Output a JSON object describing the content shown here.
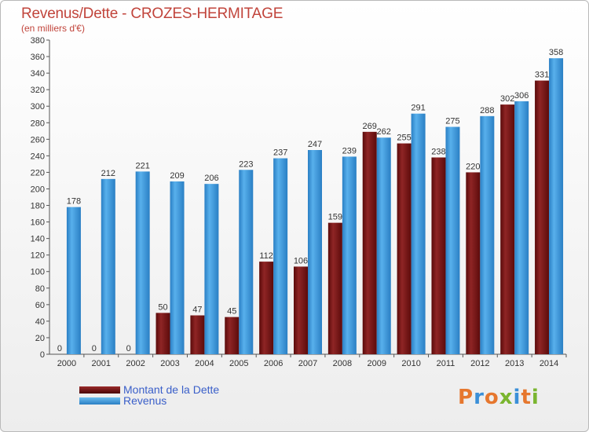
{
  "header": {
    "title": "Revenus/Dette - CROZES-HERMITAGE",
    "subtitle": "(en milliers d'€)"
  },
  "legend": [
    {
      "label": "Montant de la Dette",
      "color": "#7a1212"
    },
    {
      "label": "Revenus",
      "color": "#3d98dd"
    }
  ],
  "logo": {
    "text": "Proxiti"
  },
  "colors": {
    "dette": "#7a1212",
    "revenus": "#3d98dd",
    "title": "#c1443b"
  },
  "chart_data": {
    "type": "bar",
    "categories": [
      "2000",
      "2001",
      "2002",
      "2003",
      "2004",
      "2005",
      "2006",
      "2007",
      "2008",
      "2009",
      "2010",
      "2011",
      "2012",
      "2013",
      "2014"
    ],
    "series": [
      {
        "name": "Montant de la Dette",
        "values": [
          0,
          0,
          0,
          50,
          47,
          45,
          112,
          106,
          159,
          269,
          255,
          238,
          220,
          302,
          331
        ]
      },
      {
        "name": "Revenus",
        "values": [
          178,
          212,
          221,
          209,
          206,
          223,
          237,
          247,
          239,
          262,
          291,
          275,
          288,
          306,
          358
        ]
      }
    ],
    "ylim": [
      0,
      380
    ],
    "yticks": [
      0,
      20,
      40,
      60,
      80,
      100,
      120,
      140,
      160,
      180,
      200,
      220,
      240,
      260,
      280,
      300,
      320,
      340,
      360,
      380
    ],
    "grid": false,
    "legend_position": "bottom-left"
  }
}
